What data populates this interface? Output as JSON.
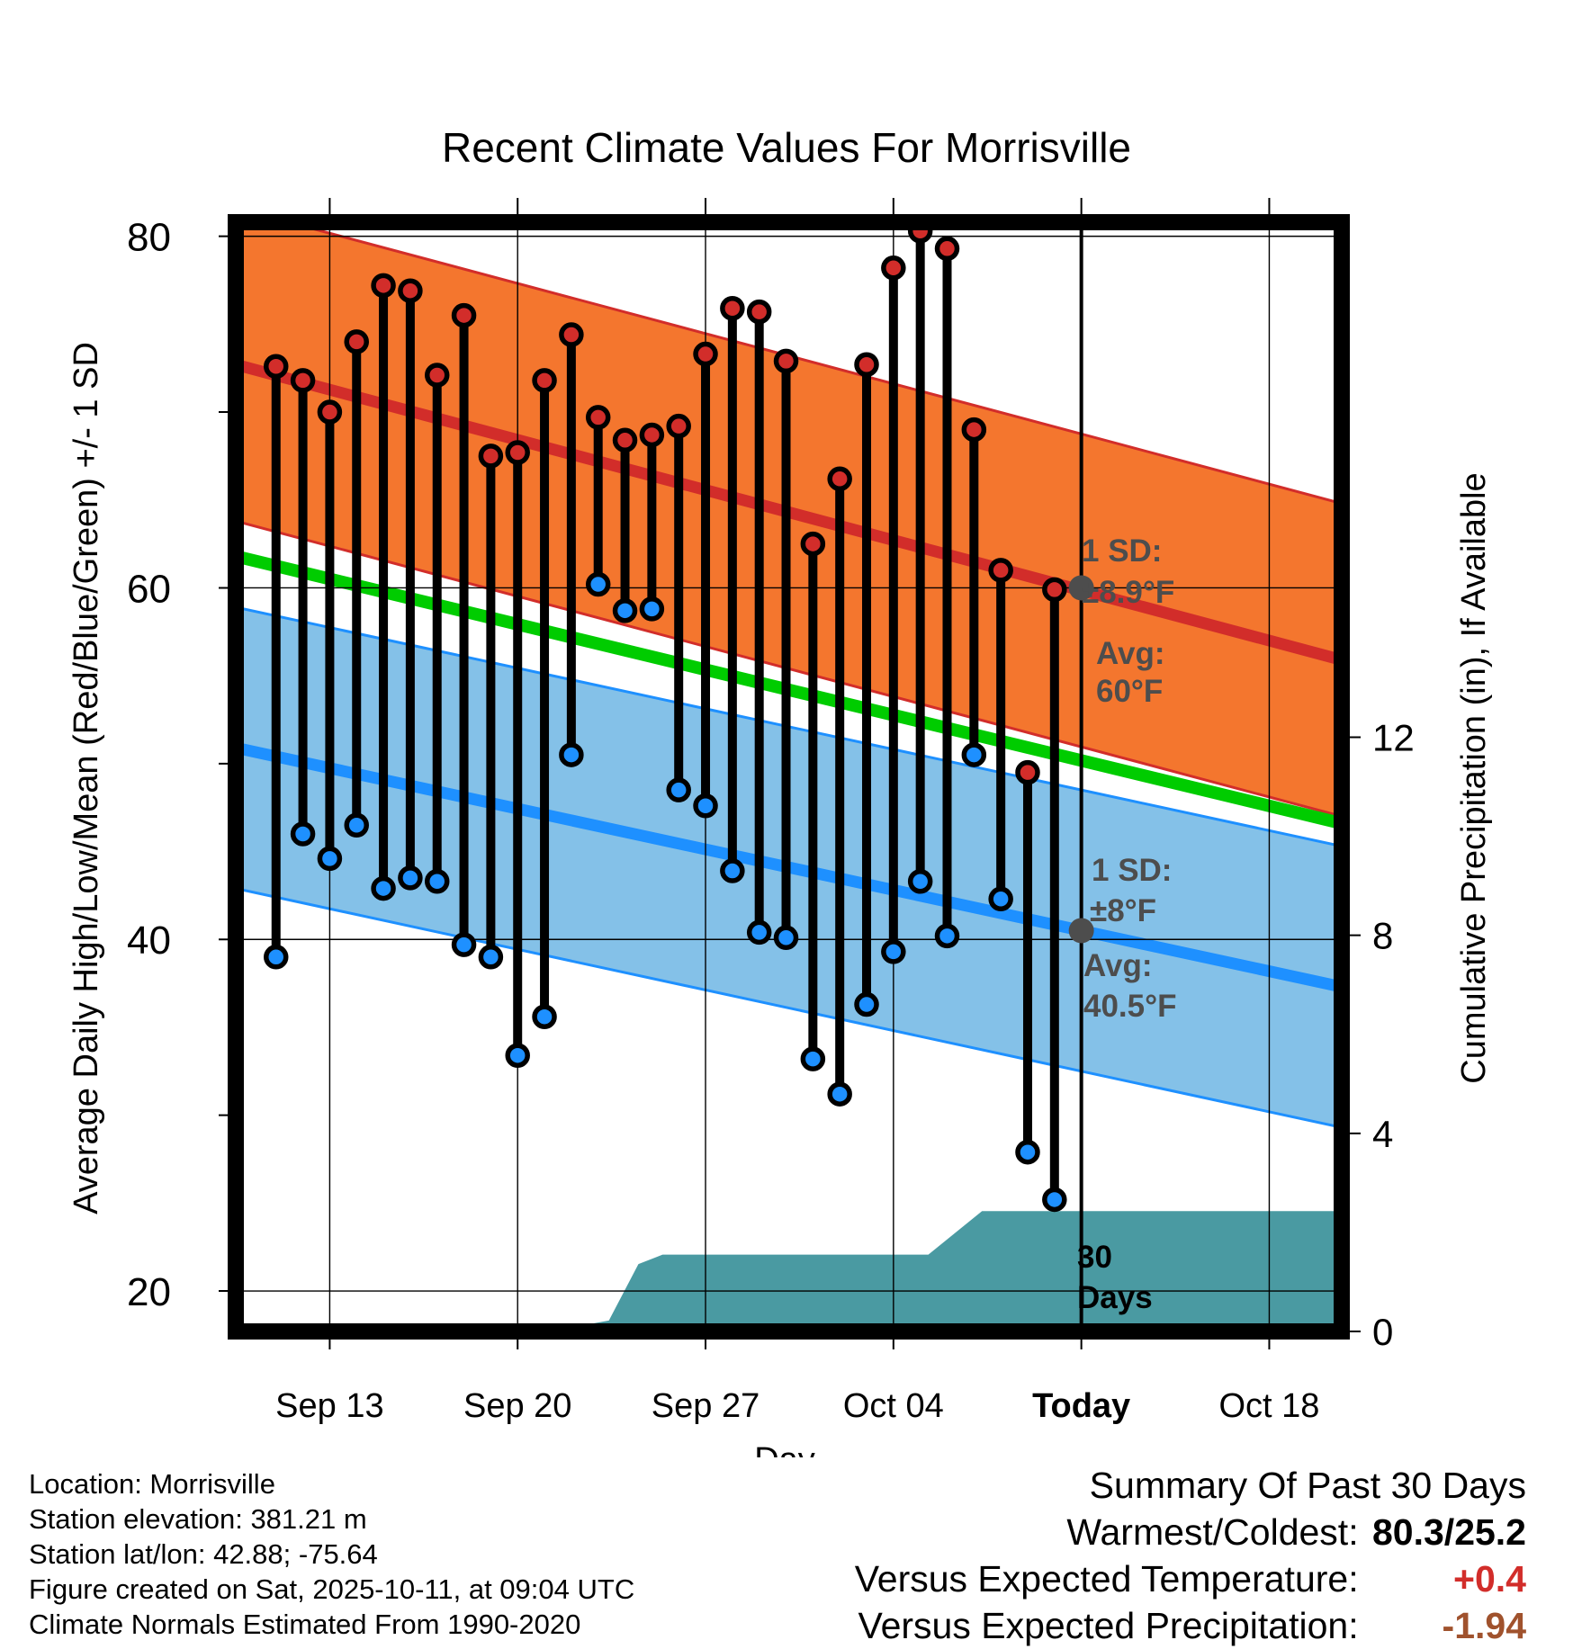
{
  "chart_data": {
    "type": "line",
    "title": "Recent Climate Values For Morrisville",
    "xlabel": "Day",
    "ylabel": "Average Daily High/Low/Mean (Red/Blue/Green) +/- 1 SD",
    "y2label": "Cumulative Precipitation (in), If Available",
    "ylim": [
      17.7,
      80.8
    ],
    "y2lim": [
      0,
      22.4
    ],
    "xlim": [
      -0.5,
      40.7
    ],
    "x_tick_labels": [
      {
        "day": 3,
        "label": "Sep 13"
      },
      {
        "day": 10,
        "label": "Sep 20"
      },
      {
        "day": 17,
        "label": "Sep 27"
      },
      {
        "day": 24,
        "label": "Oct 04"
      },
      {
        "day": 31,
        "label": "Today"
      },
      {
        "day": 38,
        "label": "Oct 18"
      }
    ],
    "y_ticks": [
      20,
      40,
      60,
      80
    ],
    "y_minor_ticks": [
      30,
      50,
      70
    ],
    "y2_ticks": [
      0,
      4,
      8,
      12
    ],
    "grid": true,
    "today_day": 31,
    "days": [
      1,
      2,
      3,
      4,
      5,
      6,
      7,
      8,
      9,
      10,
      11,
      12,
      13,
      14,
      15,
      16,
      17,
      18,
      19,
      20,
      21,
      22,
      23,
      24,
      25,
      26,
      27,
      28,
      29,
      30
    ],
    "highs": [
      72.6,
      71.8,
      70.0,
      74.0,
      77.2,
      76.9,
      72.1,
      75.5,
      67.5,
      67.7,
      71.8,
      74.4,
      69.7,
      68.4,
      68.7,
      69.2,
      73.3,
      75.9,
      75.7,
      72.9,
      62.5,
      66.2,
      72.7,
      78.2,
      80.3,
      79.3,
      69.0,
      61.0,
      49.5,
      59.9
    ],
    "lows": [
      39.0,
      46.0,
      44.6,
      46.5,
      42.9,
      43.5,
      43.3,
      39.7,
      39.0,
      33.4,
      35.6,
      50.5,
      60.2,
      58.7,
      58.8,
      48.5,
      47.6,
      43.9,
      40.4,
      40.1,
      33.2,
      31.2,
      36.3,
      39.3,
      43.3,
      40.2,
      50.5,
      42.3,
      27.9,
      25.2
    ],
    "normal_high": {
      "start": 72.7,
      "today": 60.0,
      "end": 55.9
    },
    "normal_low": {
      "start": 50.9,
      "today": 40.5,
      "end": 37.3
    },
    "normal_mean": {
      "start": 61.8,
      "end": 46.6
    },
    "sd_high": 8.9,
    "sd_low": 8.0,
    "precip_cumulative": [
      {
        "day": 11.8,
        "value": 0.0
      },
      {
        "day": 12.6,
        "value": 0.14
      },
      {
        "day": 13.4,
        "value": 0.22
      },
      {
        "day": 14.5,
        "value": 1.36
      },
      {
        "day": 15.4,
        "value": 1.55
      },
      {
        "day": 25.3,
        "value": 1.55
      },
      {
        "day": 27.3,
        "value": 2.43
      },
      {
        "day": 40.7,
        "value": 2.43
      }
    ],
    "annotations": {
      "high_sd_label": "1 SD:",
      "high_sd_value": "±8.9°F",
      "high_avg_label": "Avg:",
      "high_avg_value": "60°F",
      "low_sd_label": "1 SD:",
      "low_sd_value": "±8°F",
      "low_avg_label": "Avg:",
      "low_avg_value": "40.5°F",
      "period_number": "30",
      "period_unit": "Days"
    },
    "colors": {
      "high_band": "#f4762e",
      "high_line": "#d22d2a",
      "low_band": "#84c1e8",
      "low_line": "#1e90ff",
      "mean_line": "#00cc00",
      "precip": "#4a9aa2",
      "high_dot": "#d22d2a",
      "low_dot": "#1e90ff",
      "annotation": "#4d4d4d",
      "today_dot": "#4d4d4d"
    }
  },
  "info": {
    "location": "Location: Morrisville",
    "elevation": "Station elevation: 381.21 m",
    "latlon": "Station lat/lon: 42.88; -75.64",
    "created": "Figure created on Sat, 2025-10-11, at 09:04 UTC",
    "normals": "Climate Normals Estimated From 1990-2020"
  },
  "summary": {
    "title": "Summary Of Past 30 Days",
    "warm_cold_label": "Warmest/Coldest:",
    "warm_cold_value": "80.3/25.2",
    "temp_label": "Versus Expected Temperature:",
    "temp_value": "+0.4",
    "temp_color": "#d22d2a",
    "precip_label": "Versus Expected Precipitation:",
    "precip_value": "-1.94",
    "precip_color": "#a0522d"
  }
}
